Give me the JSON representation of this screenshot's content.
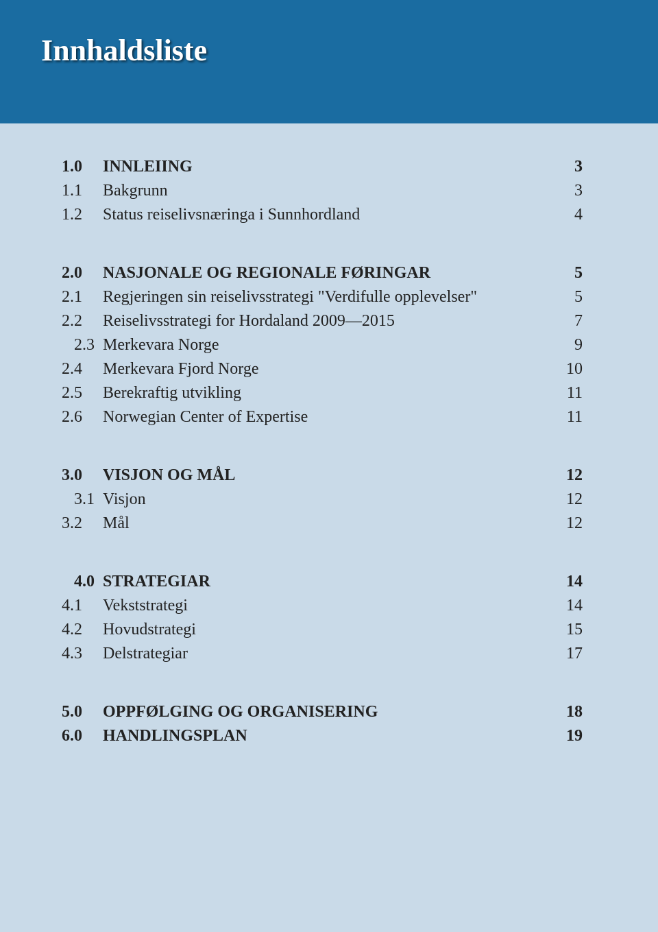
{
  "header": {
    "title": "Innhaldsliste"
  },
  "colors": {
    "header_bg": "#1a6ca1",
    "page_bg": "#c9dae8",
    "header_text": "#ffffff",
    "body_text": "#222222"
  },
  "typography": {
    "font_family": "Comic Sans MS",
    "header_fontsize": 44,
    "body_fontsize": 24
  },
  "sections": [
    {
      "rows": [
        {
          "num": "1.0",
          "label": "INNLEIING",
          "page": "3",
          "bold": true
        },
        {
          "num": "1.1",
          "label": "Bakgrunn",
          "page": "3",
          "bold": false
        },
        {
          "num": "1.2",
          "label": "Status reiselivsnæringa i Sunnhordland",
          "page": "4",
          "bold": false
        }
      ]
    },
    {
      "rows": [
        {
          "num": "2.0",
          "label": "NASJONALE OG REGIONALE FØRINGAR",
          "page": "5",
          "bold": true
        },
        {
          "num": "2.1",
          "label": "Regjeringen sin reiselivsstrategi \"Verdifulle opplevelser\"",
          "page": "5",
          "bold": false
        },
        {
          "num": "2.2",
          "label": "Reiselivsstrategi for Hordaland 2009—2015",
          "page": "7",
          "bold": false
        },
        {
          "num": "2.3",
          "label": "Merkevara Norge",
          "page": "9",
          "bold": false,
          "indent": 2
        },
        {
          "num": "2.4",
          "label": "Merkevara Fjord Norge",
          "page": "10",
          "bold": false
        },
        {
          "num": "2.5",
          "label": "Berekraftig utvikling",
          "page": "11",
          "bold": false
        },
        {
          "num": "2.6",
          "label": "Norwegian Center of Expertise",
          "page": "11",
          "bold": false
        }
      ]
    },
    {
      "rows": [
        {
          "num": "3.0",
          "label": "VISJON OG MÅL",
          "page": "12",
          "bold": true
        },
        {
          "num": "3.1",
          "label": "Visjon",
          "page": "12",
          "bold": false,
          "indent": 2
        },
        {
          "num": "3.2",
          "label": "Mål",
          "page": "12",
          "bold": false
        }
      ]
    },
    {
      "rows": [
        {
          "num": "4.0",
          "label": "STRATEGIAR",
          "page": "14",
          "bold": true,
          "indent": 2
        },
        {
          "num": "4.1",
          "label": "Vekststrategi",
          "page": "14",
          "bold": false
        },
        {
          "num": "4.2",
          "label": "Hovudstrategi",
          "page": "15",
          "bold": false
        },
        {
          "num": "4.3",
          "label": "Delstrategiar",
          "page": "17",
          "bold": false
        }
      ]
    },
    {
      "rows": [
        {
          "num": "5.0",
          "label": "OPPFØLGING OG ORGANISERING",
          "page": "18",
          "bold": true
        },
        {
          "num": "6.0",
          "label": "HANDLINGSPLAN",
          "page": "19",
          "bold": true
        }
      ]
    }
  ]
}
